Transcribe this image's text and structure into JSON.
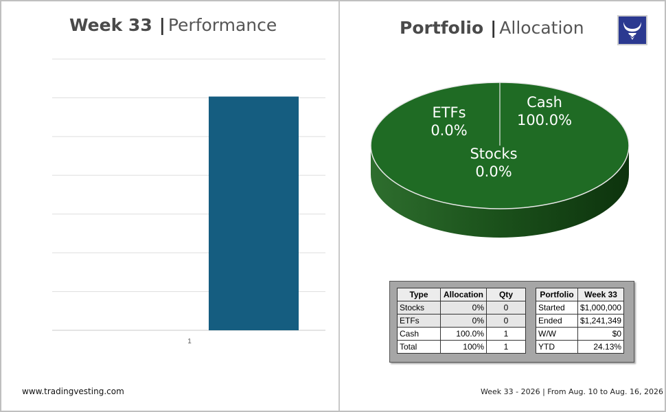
{
  "left_panel": {
    "title_bold": "Week 33",
    "title_separator": "|",
    "title_light": "Performance"
  },
  "right_panel": {
    "title_bold": "Portfolio",
    "title_separator": "|",
    "title_light": "Allocation"
  },
  "logo": {
    "icon": "bull-logo-icon",
    "color": "#2b3990"
  },
  "chart_data": [
    {
      "type": "bar",
      "categories": [
        "1"
      ],
      "series": [
        {
          "values": [
            24.13
          ]
        }
      ],
      "ylim": [
        0,
        28
      ],
      "grid": true,
      "color": "#155d80"
    },
    {
      "type": "pie",
      "labels": [
        "Cash",
        "ETFs",
        "Stocks"
      ],
      "values": [
        100.0,
        0.0,
        0.0
      ],
      "value_labels": [
        "100.0%",
        "0.0%",
        "0.0%"
      ],
      "color": "#1f6b24",
      "style": "3d"
    }
  ],
  "allocation_table": {
    "headers": [
      "Type",
      "Allocation",
      "Qty"
    ],
    "rows": [
      [
        "Stocks",
        "0%",
        "0"
      ],
      [
        "ETFs",
        "0%",
        "0"
      ],
      [
        "Cash",
        "100.0%",
        "1"
      ],
      [
        "Total",
        "100%",
        "1"
      ]
    ]
  },
  "portfolio_table": {
    "headers": [
      "Portfolio",
      "Week 33"
    ],
    "rows": [
      [
        "Started",
        "$1,000,000"
      ],
      [
        "Ended",
        "$1,241,349"
      ],
      [
        "W/W",
        "$0"
      ],
      [
        "YTD",
        "24.13%"
      ]
    ]
  },
  "footer": {
    "website": "www.tradingvesting.com",
    "date_range": "Week 33 - 2026 | From Aug. 10  to Aug. 16, 2026"
  }
}
